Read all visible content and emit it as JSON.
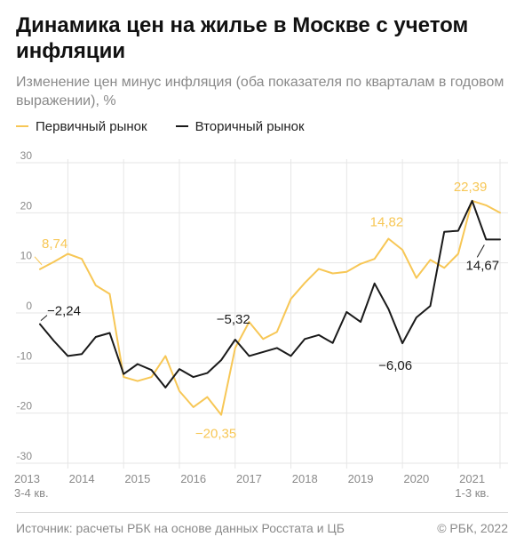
{
  "header": {
    "title": "Динамика цен на жилье в Москве с учетом инфляции",
    "subtitle": "Изменение цен минус инфляция (оба показателя по кварталам в годовом выражении), %"
  },
  "footer": {
    "source": "Источник: расчеты РБК на основе данных Росстата и ЦБ",
    "copyright": "© РБК, 2022"
  },
  "colors": {
    "primary_market": "#f7c756",
    "secondary_market": "#1a1a1a",
    "grid": "#e6e6e6",
    "axis_text": "#8a8a8a"
  },
  "chart_data": {
    "type": "line",
    "title": "Динамика цен на жилье в Москве с учетом инфляции",
    "subtitle": "Изменение цен минус инфляция (оба показателя по кварталам в годовом выражении), %",
    "ylim": [
      -30,
      30
    ],
    "yticks": [
      30,
      20,
      10,
      0,
      -10,
      -20,
      -30
    ],
    "xlim": [
      "2013-Q3",
      "2021-Q4"
    ],
    "grid": "vertical and horizontal",
    "legend_position": "top-left",
    "x": [
      "2013-Q3",
      "2013-Q4",
      "2014-Q1",
      "2014-Q2",
      "2014-Q3",
      "2014-Q4",
      "2015-Q1",
      "2015-Q2",
      "2015-Q3",
      "2015-Q4",
      "2016-Q1",
      "2016-Q2",
      "2016-Q3",
      "2016-Q4",
      "2017-Q1",
      "2017-Q2",
      "2017-Q3",
      "2017-Q4",
      "2018-Q1",
      "2018-Q2",
      "2018-Q3",
      "2018-Q4",
      "2019-Q1",
      "2019-Q2",
      "2019-Q3",
      "2019-Q4",
      "2020-Q1",
      "2020-Q2",
      "2020-Q3",
      "2020-Q4",
      "2021-Q1",
      "2021-Q2",
      "2021-Q3",
      "2021-Q4"
    ],
    "x_tick_labels": [
      {
        "label": "2013",
        "sublabel": "3-4 кв.",
        "at": "2013-Q3"
      },
      {
        "label": "2014",
        "sublabel": "",
        "at": "2014-Q2"
      },
      {
        "label": "2015",
        "sublabel": "",
        "at": "2015-Q2"
      },
      {
        "label": "2016",
        "sublabel": "",
        "at": "2016-Q2"
      },
      {
        "label": "2017",
        "sublabel": "",
        "at": "2017-Q2"
      },
      {
        "label": "2018",
        "sublabel": "",
        "at": "2018-Q2"
      },
      {
        "label": "2019",
        "sublabel": "",
        "at": "2019-Q2"
      },
      {
        "label": "2020",
        "sublabel": "",
        "at": "2020-Q2"
      },
      {
        "label": "2021",
        "sublabel": "1-3 кв.",
        "at": "2021-Q2"
      }
    ],
    "series": [
      {
        "name": "Первичный рынок",
        "color": "#f7c756",
        "values": [
          8.74,
          10.2,
          11.8,
          10.8,
          5.5,
          3.8,
          -12.8,
          -13.6,
          -12.8,
          -8.6,
          -15.6,
          -18.8,
          -16.8,
          -20.35,
          -7.0,
          -1.8,
          -5.2,
          -3.8,
          2.8,
          6.0,
          8.8,
          7.9,
          8.2,
          9.8,
          10.8,
          14.82,
          12.6,
          7.0,
          10.6,
          9.0,
          11.8,
          22.39,
          21.5,
          20.0
        ]
      },
      {
        "name": "Вторичный рынок",
        "color": "#1a1a1a",
        "values": [
          -2.24,
          -5.6,
          -8.6,
          -8.2,
          -4.8,
          -4.0,
          -12.2,
          -10.2,
          -11.4,
          -14.9,
          -11.2,
          -12.8,
          -12.0,
          -9.4,
          -5.32,
          -8.6,
          -7.8,
          -7.0,
          -8.6,
          -5.2,
          -4.4,
          -6.0,
          0.2,
          -1.8,
          5.9,
          0.8,
          -6.06,
          -0.9,
          1.4,
          16.2,
          16.4,
          22.39,
          14.67,
          14.67
        ]
      }
    ],
    "annotations": [
      {
        "text": "8,74",
        "series": "Первичный рынок",
        "at": "2013-Q3",
        "value": 8.74
      },
      {
        "text": "−2,24",
        "series": "Вторичный рынок",
        "at": "2013-Q3",
        "value": -2.24
      },
      {
        "text": "−5,32",
        "series": "Вторичный рынок",
        "at": "2017-Q1",
        "value": -5.32
      },
      {
        "text": "−20,35",
        "series": "Первичный рынок",
        "at": "2016-Q4",
        "value": -20.35
      },
      {
        "text": "14,82",
        "series": "Первичный рынок",
        "at": "2019-Q4",
        "value": 14.82
      },
      {
        "text": "−6,06",
        "series": "Вторичный рынок",
        "at": "2020-Q1",
        "value": -6.06
      },
      {
        "text": "22,39",
        "series": "Первичный рынок",
        "at": "2021-Q2",
        "value": 22.39
      },
      {
        "text": "14,67",
        "series": "Вторичный рынок",
        "at": "2021-Q3",
        "value": 14.67
      }
    ]
  }
}
